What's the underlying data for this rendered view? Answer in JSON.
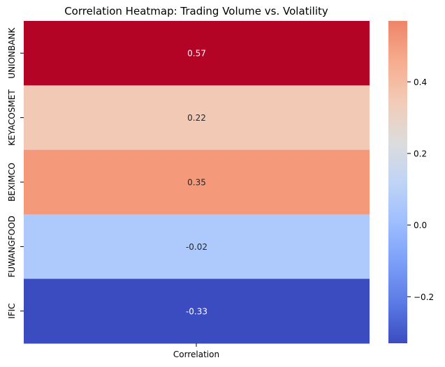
{
  "chart_data": {
    "type": "heatmap",
    "title": "Correlation Heatmap: Trading Volume vs. Volatility",
    "columns": [
      "Correlation"
    ],
    "rows": [
      "UNIONBANK",
      "KEYACOSMET",
      "BEXIMCO",
      "FUWANGFOOD",
      "IFIC"
    ],
    "values": [
      0.57,
      0.22,
      0.35,
      -0.02,
      -0.33
    ],
    "annotations": [
      "0.57",
      "0.22",
      "0.35",
      "-0.02",
      "-0.33"
    ],
    "colormap": "coolwarm",
    "vmin": -0.33,
    "vmax": 0.57,
    "colorbar_ticks": [
      0.4,
      0.2,
      0.0,
      -0.2
    ],
    "colorbar_tick_labels": [
      "0.4",
      "0.2",
      "0.0",
      "−0.2"
    ],
    "cell_colors": [
      "#b40426",
      "#f2c9b4",
      "#f49a7b",
      "#aec9fc",
      "#3b4cc0"
    ],
    "annotation_colors": [
      "#ffffff",
      "#262626",
      "#262626",
      "#262626",
      "#ffffff"
    ]
  }
}
